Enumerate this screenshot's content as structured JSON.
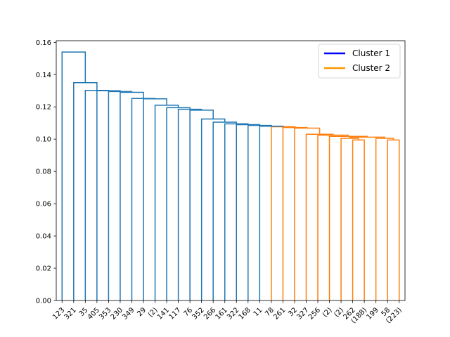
{
  "chart_data": {
    "type": "dendrogram",
    "title": "",
    "xlabel": "",
    "ylabel": "",
    "ylim": [
      0,
      0.161
    ],
    "yticks": [
      0.0,
      0.02,
      0.04,
      0.06,
      0.08,
      0.1,
      0.12,
      0.14,
      0.16
    ],
    "ytick_labels": [
      "0.00",
      "0.02",
      "0.04",
      "0.06",
      "0.08",
      "0.10",
      "0.12",
      "0.14",
      "0.16"
    ],
    "leaves": [
      "123",
      "321",
      "35",
      "405",
      "353",
      "230",
      "349",
      "29",
      "(2)",
      "141",
      "117",
      "76",
      "352",
      "266",
      "161",
      "322",
      "168",
      "11",
      "78",
      "261",
      "32",
      "327",
      "256",
      "(2)",
      "(2)",
      "262",
      "(188)",
      "199",
      "58",
      "(223)"
    ],
    "legend": {
      "placement": "top-right",
      "entries": [
        {
          "label": "Cluster 1",
          "color": "#0000ff"
        },
        {
          "label": "Cluster 2",
          "color": "#ff9900"
        }
      ]
    },
    "link_colors": {
      "cluster1": "#1f77b4",
      "cluster2": "#ff7f0e"
    },
    "merges": [
      {
        "id": "m1",
        "left": "L:28",
        "right": "L:29",
        "height": 0.0995,
        "cluster": "cluster2"
      },
      {
        "id": "m2",
        "left": "L:27",
        "right": "m1",
        "height": 0.1005,
        "cluster": "cluster2"
      },
      {
        "id": "m3",
        "left": "L:25",
        "right": "L:26",
        "height": 0.0995,
        "cluster": "cluster2"
      },
      {
        "id": "m4",
        "left": "L:24",
        "right": "m3",
        "height": 0.1005,
        "cluster": "cluster2"
      },
      {
        "id": "m5",
        "left": "m4",
        "right": "m2",
        "height": 0.1012,
        "cluster": "cluster2"
      },
      {
        "id": "m6",
        "left": "L:23",
        "right": "m5",
        "height": 0.1017,
        "cluster": "cluster2"
      },
      {
        "id": "m7",
        "left": "L:22",
        "right": "m6",
        "height": 0.1025,
        "cluster": "cluster2"
      },
      {
        "id": "m8",
        "left": "L:21",
        "right": "m7",
        "height": 0.103,
        "cluster": "cluster2"
      },
      {
        "id": "m9",
        "left": "L:20",
        "right": "m8",
        "height": 0.1068,
        "cluster": "cluster2"
      },
      {
        "id": "m10",
        "left": "L:19",
        "right": "m9",
        "height": 0.1072,
        "cluster": "cluster2"
      },
      {
        "id": "m11",
        "left": "L:18",
        "right": "m10",
        "height": 0.1077,
        "cluster": "cluster2"
      },
      {
        "id": "m12",
        "left": "L:17",
        "right": "m11",
        "height": 0.108,
        "cluster": "cluster1"
      },
      {
        "id": "m13",
        "left": "L:16",
        "right": "m12",
        "height": 0.1085,
        "cluster": "cluster1"
      },
      {
        "id": "m14",
        "left": "L:15",
        "right": "m13",
        "height": 0.109,
        "cluster": "cluster1"
      },
      {
        "id": "m15",
        "left": "L:14",
        "right": "m14",
        "height": 0.1095,
        "cluster": "cluster1"
      },
      {
        "id": "m16",
        "left": "L:13",
        "right": "m15",
        "height": 0.1105,
        "cluster": "cluster1"
      },
      {
        "id": "m17",
        "left": "L:12",
        "right": "m16",
        "height": 0.1125,
        "cluster": "cluster1"
      },
      {
        "id": "m18",
        "left": "L:11",
        "right": "m17",
        "height": 0.118,
        "cluster": "cluster1"
      },
      {
        "id": "m19",
        "left": "L:10",
        "right": "m18",
        "height": 0.1185,
        "cluster": "cluster1"
      },
      {
        "id": "m20",
        "left": "L:9",
        "right": "m19",
        "height": 0.1195,
        "cluster": "cluster1"
      },
      {
        "id": "m21",
        "left": "L:8",
        "right": "m20",
        "height": 0.121,
        "cluster": "cluster1"
      },
      {
        "id": "m22",
        "left": "L:7",
        "right": "m21",
        "height": 0.125,
        "cluster": "cluster1"
      },
      {
        "id": "m23",
        "left": "L:6",
        "right": "m22",
        "height": 0.1252,
        "cluster": "cluster1"
      },
      {
        "id": "m24",
        "left": "L:5",
        "right": "m23",
        "height": 0.129,
        "cluster": "cluster1"
      },
      {
        "id": "m25",
        "left": "L:4",
        "right": "m24",
        "height": 0.1295,
        "cluster": "cluster1"
      },
      {
        "id": "m26",
        "left": "L:3",
        "right": "m25",
        "height": 0.13,
        "cluster": "cluster1"
      },
      {
        "id": "m27",
        "left": "L:2",
        "right": "m26",
        "height": 0.1302,
        "cluster": "cluster1"
      },
      {
        "id": "m28",
        "left": "L:1",
        "right": "m27",
        "height": 0.135,
        "cluster": "cluster1"
      },
      {
        "id": "m29",
        "left": "L:0",
        "right": "m28",
        "height": 0.154,
        "cluster": "cluster1"
      }
    ]
  }
}
